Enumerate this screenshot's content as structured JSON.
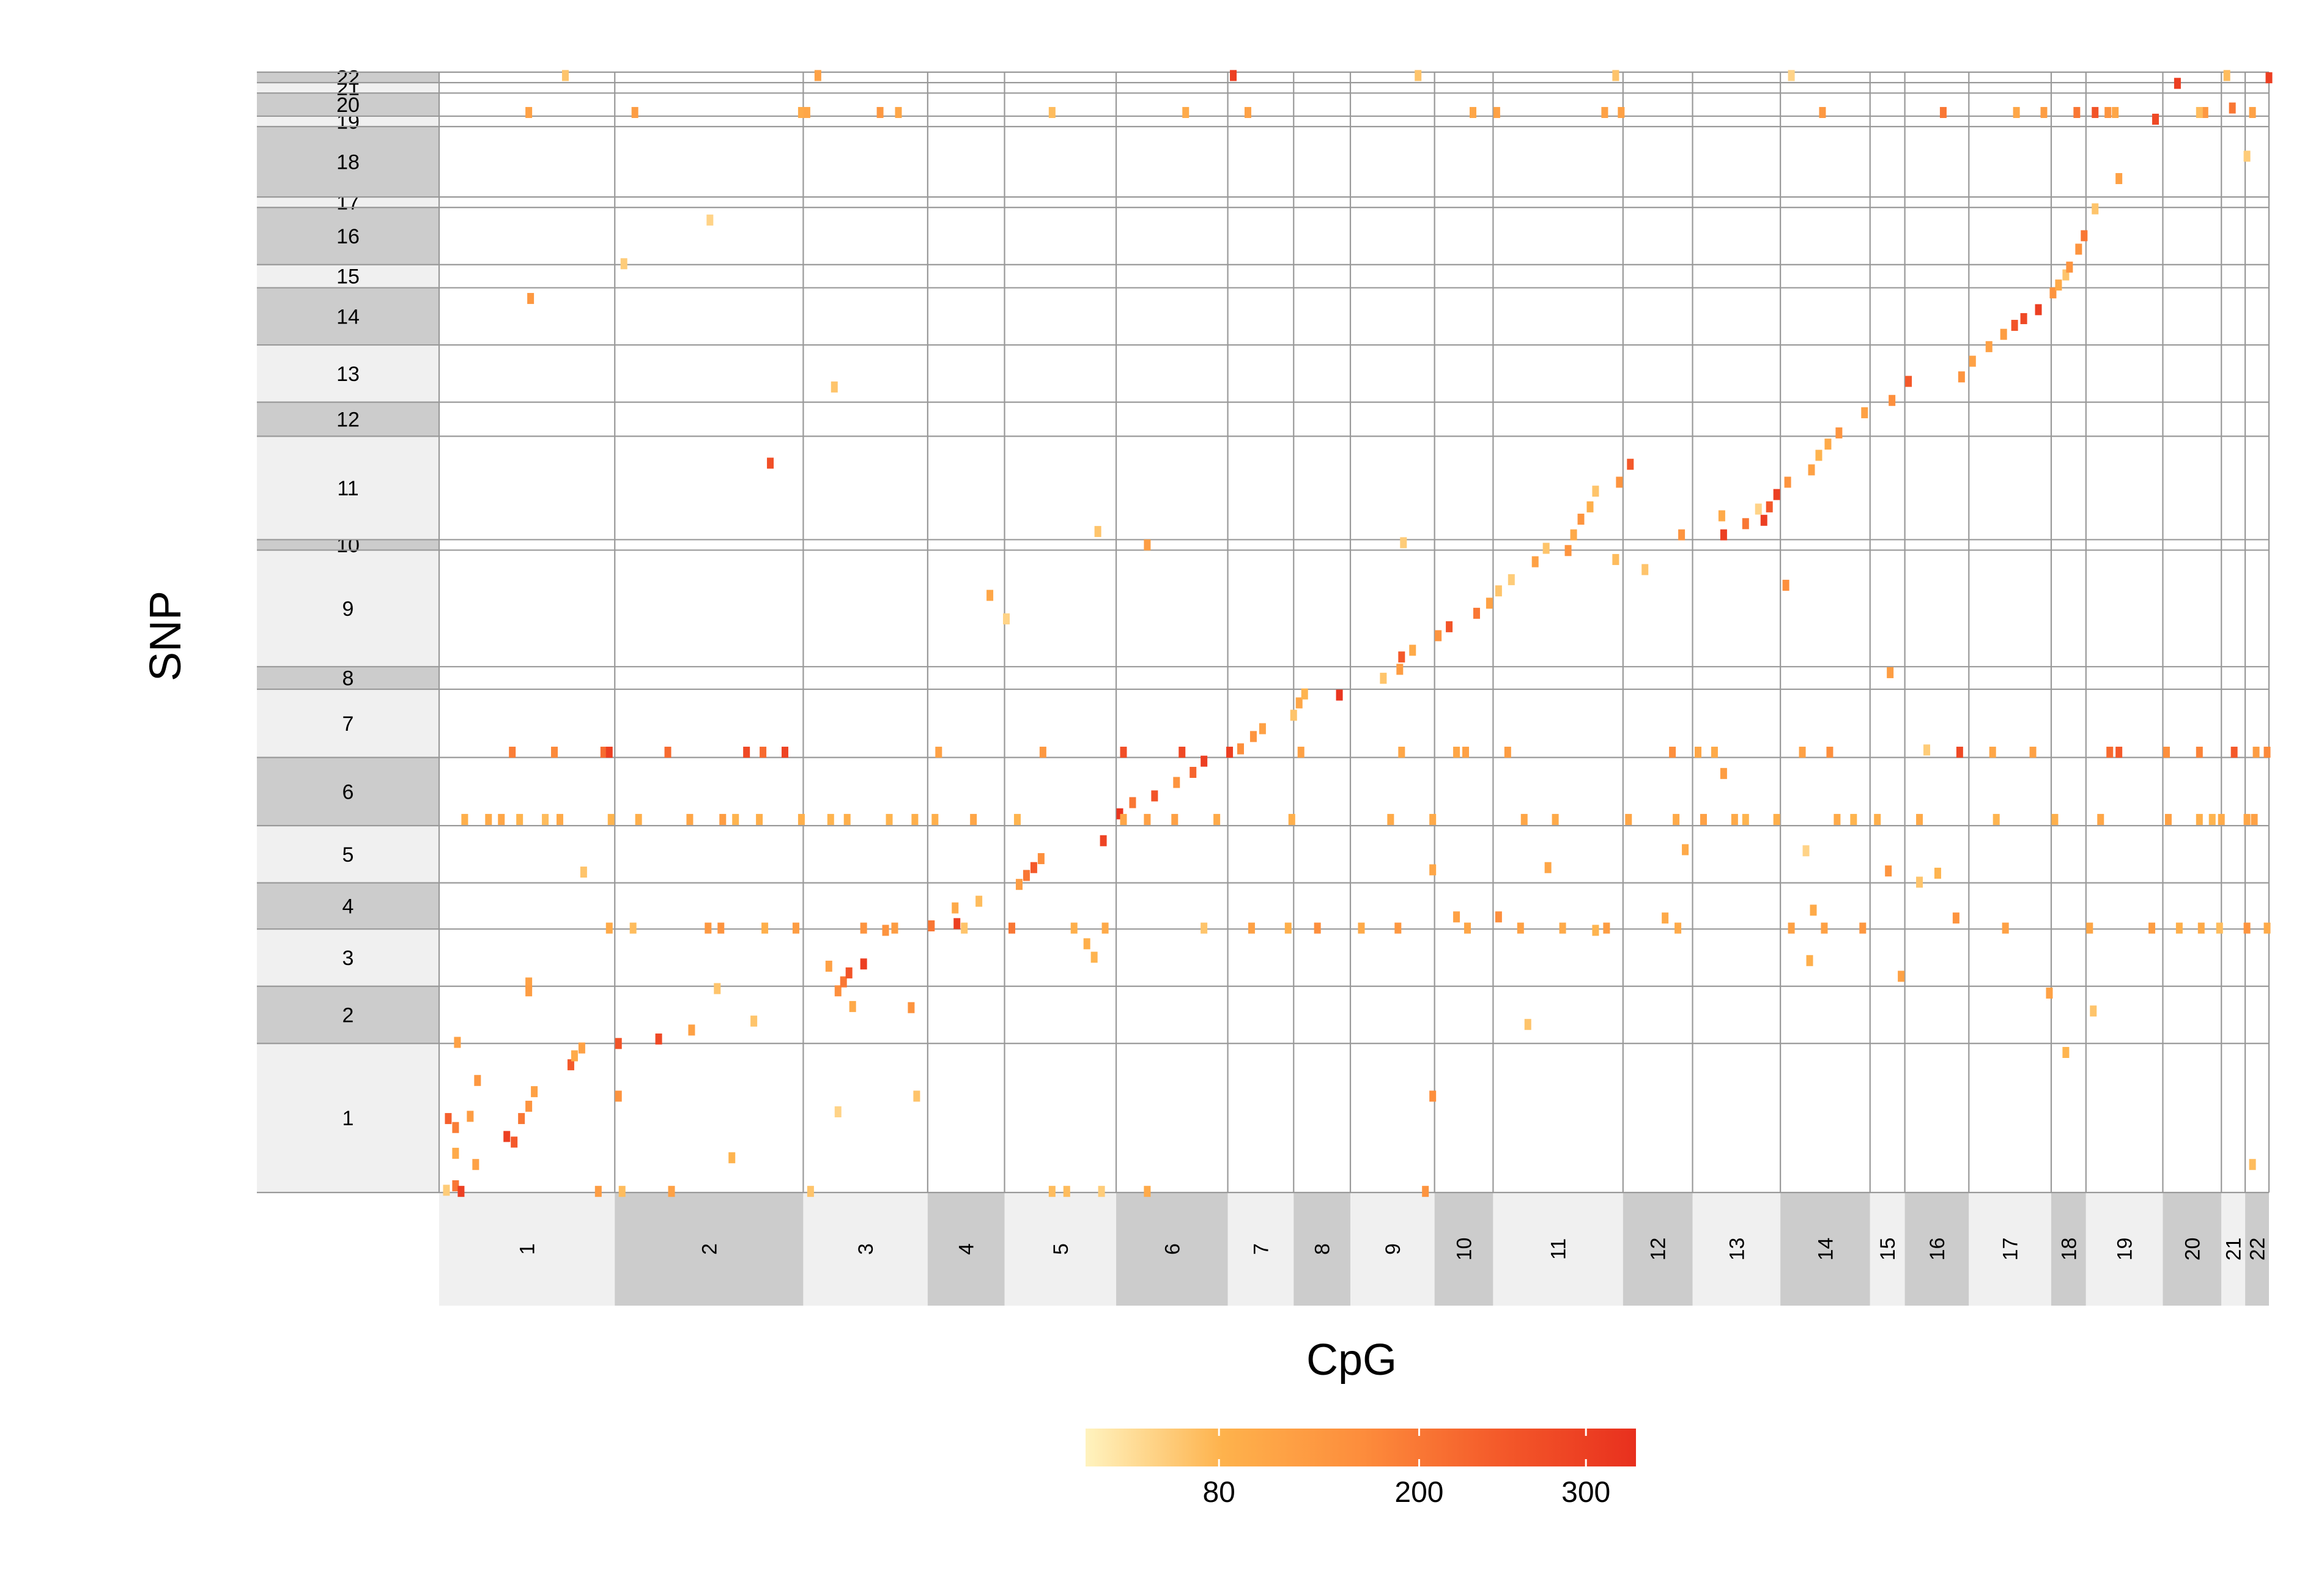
{
  "chart_data": {
    "type": "heatmap",
    "xlabel": "CpG",
    "ylabel": "SNP",
    "grid": true,
    "legend_position": "bottom",
    "chromosomes": [
      "1",
      "2",
      "3",
      "4",
      "5",
      "6",
      "7",
      "8",
      "9",
      "10",
      "11",
      "12",
      "13",
      "14",
      "15",
      "16",
      "17",
      "18",
      "19",
      "20",
      "21",
      "22"
    ],
    "cpg_chrom_fraction": [
      0.096,
      0.103,
      0.068,
      0.042,
      0.061,
      0.061,
      0.036,
      0.031,
      0.046,
      0.032,
      0.071,
      0.038,
      0.048,
      0.049,
      0.019,
      0.035,
      0.045,
      0.019,
      0.042,
      0.032,
      0.013,
      0.013
    ],
    "snp_chrom_fraction": [
      0.1355,
      0.052,
      0.052,
      0.042,
      0.052,
      0.062,
      0.062,
      0.0205,
      0.106,
      0.0095,
      0.094,
      0.031,
      0.052,
      0.052,
      0.021,
      0.052,
      0.0095,
      0.064,
      0.0095,
      0.021,
      0.0095,
      0.0095
    ],
    "colorbar": {
      "ticks": [
        80,
        200,
        300
      ],
      "min": 0,
      "max": 330,
      "colors": [
        "#fff3bf",
        "#feb24c",
        "#fd8d3c",
        "#f45a2a",
        "#e8301e"
      ]
    },
    "points": [
      [
        0.004,
        0.002,
        50
      ],
      [
        0.009,
        0.006,
        200
      ],
      [
        0.02,
        0.025,
        120
      ],
      [
        0.037,
        0.05,
        300
      ],
      [
        0.041,
        0.045,
        250
      ],
      [
        0.045,
        0.066,
        200
      ],
      [
        0.049,
        0.077,
        150
      ],
      [
        0.052,
        0.09,
        120
      ],
      [
        0.017,
        0.068,
        130
      ],
      [
        0.072,
        0.114,
        250
      ],
      [
        0.074,
        0.122,
        100
      ],
      [
        0.078,
        0.129,
        120
      ],
      [
        0.098,
        0.133,
        260
      ],
      [
        0.12,
        0.137,
        280
      ],
      [
        0.138,
        0.145,
        120
      ],
      [
        0.172,
        0.153,
        60
      ],
      [
        0.218,
        0.18,
        160
      ],
      [
        0.221,
        0.188,
        200
      ],
      [
        0.224,
        0.196,
        260
      ],
      [
        0.232,
        0.204,
        300
      ],
      [
        0.244,
        0.234,
        150
      ],
      [
        0.269,
        0.238,
        200
      ],
      [
        0.283,
        0.24,
        300
      ],
      [
        0.282,
        0.254,
        100
      ],
      [
        0.295,
        0.26,
        70
      ],
      [
        0.317,
        0.275,
        130
      ],
      [
        0.321,
        0.283,
        200
      ],
      [
        0.325,
        0.29,
        250
      ],
      [
        0.329,
        0.298,
        160
      ],
      [
        0.363,
        0.314,
        290
      ],
      [
        0.372,
        0.338,
        320
      ],
      [
        0.379,
        0.348,
        200
      ],
      [
        0.391,
        0.354,
        260
      ],
      [
        0.403,
        0.366,
        150
      ],
      [
        0.412,
        0.375,
        230
      ],
      [
        0.418,
        0.385,
        300
      ],
      [
        0.438,
        0.396,
        160
      ],
      [
        0.445,
        0.407,
        150
      ],
      [
        0.45,
        0.414,
        120
      ],
      [
        0.467,
        0.426,
        60
      ],
      [
        0.47,
        0.437,
        110
      ],
      [
        0.473,
        0.445,
        80
      ],
      [
        0.492,
        0.444,
        320
      ],
      [
        0.516,
        0.459,
        60
      ],
      [
        0.525,
        0.467,
        130
      ],
      [
        0.526,
        0.478,
        250
      ],
      [
        0.532,
        0.484,
        100
      ],
      [
        0.546,
        0.497,
        150
      ],
      [
        0.552,
        0.505,
        260
      ],
      [
        0.567,
        0.517,
        200
      ],
      [
        0.574,
        0.526,
        120
      ],
      [
        0.579,
        0.537,
        60
      ],
      [
        0.586,
        0.547,
        50
      ],
      [
        0.599,
        0.563,
        120
      ],
      [
        0.605,
        0.575,
        60
      ],
      [
        0.617,
        0.573,
        150
      ],
      [
        0.62,
        0.587,
        100
      ],
      [
        0.624,
        0.601,
        150
      ],
      [
        0.629,
        0.612,
        90
      ],
      [
        0.632,
        0.626,
        60
      ],
      [
        0.645,
        0.634,
        150
      ],
      [
        0.651,
        0.65,
        250
      ],
      [
        0.679,
        0.587,
        150
      ],
      [
        0.702,
        0.587,
        300
      ],
      [
        0.714,
        0.597,
        200
      ],
      [
        0.724,
        0.6,
        300
      ],
      [
        0.727,
        0.612,
        250
      ],
      [
        0.731,
        0.623,
        300
      ],
      [
        0.737,
        0.634,
        150
      ],
      [
        0.75,
        0.645,
        120
      ],
      [
        0.754,
        0.658,
        80
      ],
      [
        0.759,
        0.668,
        100
      ],
      [
        0.765,
        0.678,
        150
      ],
      [
        0.779,
        0.696,
        120
      ],
      [
        0.794,
        0.707,
        160
      ],
      [
        0.803,
        0.724,
        250
      ],
      [
        0.832,
        0.728,
        150
      ],
      [
        0.838,
        0.742,
        120
      ],
      [
        0.847,
        0.755,
        120
      ],
      [
        0.855,
        0.766,
        130
      ],
      [
        0.861,
        0.774,
        260
      ],
      [
        0.866,
        0.78,
        280
      ],
      [
        0.874,
        0.788,
        300
      ],
      [
        0.882,
        0.803,
        150
      ],
      [
        0.885,
        0.81,
        100
      ],
      [
        0.889,
        0.819,
        60
      ],
      [
        0.891,
        0.826,
        150
      ],
      [
        0.896,
        0.842,
        150
      ],
      [
        0.899,
        0.854,
        200
      ],
      [
        0.905,
        0.878,
        60
      ],
      [
        0.918,
        0.905,
        120
      ],
      [
        0.938,
        0.958,
        280
      ],
      [
        0.95,
        0.99,
        300
      ],
      [
        0.98,
        0.968,
        200
      ],
      [
        1.0,
        0.995,
        300
      ],
      [
        0.012,
        0.001,
        300
      ],
      [
        0.005,
        0.066,
        240
      ],
      [
        0.009,
        0.058,
        190
      ],
      [
        0.021,
        0.1,
        140
      ],
      [
        0.01,
        0.134,
        120
      ],
      [
        0.098,
        0.086,
        150
      ],
      [
        0.087,
        0.001,
        130
      ],
      [
        0.1,
        0.001,
        70
      ],
      [
        0.127,
        0.001,
        120
      ],
      [
        0.203,
        0.001,
        60
      ],
      [
        0.335,
        0.001,
        70
      ],
      [
        0.343,
        0.001,
        70
      ],
      [
        0.362,
        0.001,
        50
      ],
      [
        0.387,
        0.001,
        100
      ],
      [
        0.539,
        0.001,
        150
      ],
      [
        0.543,
        0.086,
        160
      ],
      [
        0.218,
        0.072,
        40
      ],
      [
        0.05,
        0.798,
        140
      ],
      [
        0.049,
        0.187,
        120
      ],
      [
        0.049,
        0.18,
        130
      ],
      [
        0.093,
        0.236,
        100
      ],
      [
        0.106,
        0.236,
        70
      ],
      [
        0.147,
        0.236,
        140
      ],
      [
        0.154,
        0.236,
        150
      ],
      [
        0.178,
        0.236,
        90
      ],
      [
        0.195,
        0.236,
        130
      ],
      [
        0.232,
        0.236,
        150
      ],
      [
        0.249,
        0.236,
        130
      ],
      [
        0.287,
        0.236,
        60
      ],
      [
        0.313,
        0.236,
        200
      ],
      [
        0.347,
        0.236,
        90
      ],
      [
        0.364,
        0.236,
        100
      ],
      [
        0.418,
        0.236,
        60
      ],
      [
        0.444,
        0.236,
        120
      ],
      [
        0.464,
        0.236,
        90
      ],
      [
        0.48,
        0.236,
        160
      ],
      [
        0.504,
        0.236,
        100
      ],
      [
        0.524,
        0.236,
        140
      ],
      [
        0.562,
        0.236,
        110
      ],
      [
        0.591,
        0.236,
        120
      ],
      [
        0.614,
        0.236,
        100
      ],
      [
        0.638,
        0.236,
        130
      ],
      [
        0.677,
        0.236,
        100
      ],
      [
        0.739,
        0.236,
        120
      ],
      [
        0.757,
        0.236,
        120
      ],
      [
        0.778,
        0.236,
        140
      ],
      [
        0.856,
        0.236,
        120
      ],
      [
        0.902,
        0.236,
        110
      ],
      [
        0.936,
        0.236,
        130
      ],
      [
        0.951,
        0.236,
        90
      ],
      [
        0.963,
        0.236,
        100
      ],
      [
        0.973,
        0.236,
        70
      ],
      [
        0.988,
        0.236,
        150
      ],
      [
        0.999,
        0.236,
        100
      ],
      [
        0.014,
        0.333,
        90
      ],
      [
        0.027,
        0.333,
        100
      ],
      [
        0.034,
        0.333,
        110
      ],
      [
        0.044,
        0.333,
        80
      ],
      [
        0.058,
        0.333,
        70
      ],
      [
        0.066,
        0.333,
        100
      ],
      [
        0.094,
        0.333,
        80
      ],
      [
        0.109,
        0.333,
        90
      ],
      [
        0.137,
        0.333,
        110
      ],
      [
        0.155,
        0.333,
        130
      ],
      [
        0.162,
        0.333,
        80
      ],
      [
        0.175,
        0.333,
        90
      ],
      [
        0.198,
        0.333,
        90
      ],
      [
        0.214,
        0.333,
        80
      ],
      [
        0.223,
        0.333,
        90
      ],
      [
        0.246,
        0.333,
        80
      ],
      [
        0.26,
        0.333,
        90
      ],
      [
        0.271,
        0.333,
        90
      ],
      [
        0.292,
        0.333,
        110
      ],
      [
        0.316,
        0.333,
        80
      ],
      [
        0.374,
        0.333,
        110
      ],
      [
        0.387,
        0.333,
        120
      ],
      [
        0.402,
        0.333,
        120
      ],
      [
        0.425,
        0.333,
        100
      ],
      [
        0.466,
        0.333,
        90
      ],
      [
        0.52,
        0.333,
        100
      ],
      [
        0.543,
        0.333,
        100
      ],
      [
        0.593,
        0.333,
        110
      ],
      [
        0.61,
        0.333,
        100
      ],
      [
        0.65,
        0.333,
        110
      ],
      [
        0.676,
        0.333,
        100
      ],
      [
        0.691,
        0.333,
        120
      ],
      [
        0.708,
        0.333,
        100
      ],
      [
        0.714,
        0.333,
        80
      ],
      [
        0.731,
        0.333,
        90
      ],
      [
        0.764,
        0.333,
        100
      ],
      [
        0.773,
        0.333,
        80
      ],
      [
        0.786,
        0.333,
        90
      ],
      [
        0.809,
        0.333,
        100
      ],
      [
        0.851,
        0.333,
        80
      ],
      [
        0.883,
        0.333,
        90
      ],
      [
        0.908,
        0.333,
        110
      ],
      [
        0.945,
        0.333,
        120
      ],
      [
        0.962,
        0.333,
        90
      ],
      [
        0.969,
        0.333,
        80
      ],
      [
        0.974,
        0.333,
        100
      ],
      [
        0.988,
        0.333,
        110
      ],
      [
        0.992,
        0.333,
        120
      ],
      [
        0.04,
        0.393,
        190
      ],
      [
        0.063,
        0.393,
        170
      ],
      [
        0.09,
        0.393,
        220
      ],
      [
        0.093,
        0.393,
        300
      ],
      [
        0.125,
        0.393,
        220
      ],
      [
        0.168,
        0.393,
        280
      ],
      [
        0.177,
        0.393,
        220
      ],
      [
        0.189,
        0.393,
        290
      ],
      [
        0.273,
        0.393,
        120
      ],
      [
        0.33,
        0.393,
        140
      ],
      [
        0.374,
        0.393,
        270
      ],
      [
        0.406,
        0.393,
        280
      ],
      [
        0.432,
        0.393,
        300
      ],
      [
        0.471,
        0.393,
        120
      ],
      [
        0.526,
        0.393,
        110
      ],
      [
        0.556,
        0.393,
        110
      ],
      [
        0.561,
        0.393,
        120
      ],
      [
        0.584,
        0.393,
        130
      ],
      [
        0.674,
        0.393,
        160
      ],
      [
        0.688,
        0.393,
        110
      ],
      [
        0.697,
        0.393,
        100
      ],
      [
        0.745,
        0.393,
        120
      ],
      [
        0.76,
        0.393,
        160
      ],
      [
        0.831,
        0.393,
        280
      ],
      [
        0.849,
        0.393,
        110
      ],
      [
        0.871,
        0.393,
        120
      ],
      [
        0.913,
        0.393,
        220
      ],
      [
        0.918,
        0.393,
        250
      ],
      [
        0.944,
        0.393,
        160
      ],
      [
        0.962,
        0.393,
        180
      ],
      [
        0.981,
        0.393,
        250
      ],
      [
        0.993,
        0.393,
        130
      ],
      [
        0.999,
        0.393,
        170
      ],
      [
        0.049,
        0.964,
        120
      ],
      [
        0.107,
        0.964,
        130
      ],
      [
        0.198,
        0.964,
        100
      ],
      [
        0.201,
        0.964,
        110
      ],
      [
        0.241,
        0.964,
        140
      ],
      [
        0.251,
        0.964,
        110
      ],
      [
        0.335,
        0.964,
        70
      ],
      [
        0.408,
        0.964,
        100
      ],
      [
        0.442,
        0.964,
        120
      ],
      [
        0.565,
        0.964,
        110
      ],
      [
        0.578,
        0.964,
        120
      ],
      [
        0.637,
        0.964,
        120
      ],
      [
        0.646,
        0.964,
        120
      ],
      [
        0.756,
        0.964,
        140
      ],
      [
        0.822,
        0.964,
        200
      ],
      [
        0.862,
        0.964,
        110
      ],
      [
        0.877,
        0.964,
        130
      ],
      [
        0.895,
        0.964,
        200
      ],
      [
        0.905,
        0.964,
        260
      ],
      [
        0.912,
        0.964,
        150
      ],
      [
        0.916,
        0.964,
        110
      ],
      [
        0.965,
        0.964,
        140
      ],
      [
        0.991,
        0.964,
        120
      ],
      [
        0.069,
        0.997,
        60
      ],
      [
        0.207,
        0.997,
        120
      ],
      [
        0.434,
        0.997,
        300
      ],
      [
        0.535,
        0.997,
        60
      ],
      [
        0.643,
        0.997,
        60
      ],
      [
        0.739,
        0.997,
        40
      ],
      [
        0.977,
        0.997,
        70
      ],
      [
        0.988,
        0.925,
        50
      ],
      [
        0.962,
        0.964,
        70
      ],
      [
        0.148,
        0.868,
        40
      ],
      [
        0.101,
        0.829,
        50
      ],
      [
        0.216,
        0.719,
        60
      ],
      [
        0.181,
        0.651,
        270
      ],
      [
        0.301,
        0.533,
        110
      ],
      [
        0.31,
        0.512,
        40
      ],
      [
        0.36,
        0.59,
        60
      ],
      [
        0.387,
        0.578,
        130
      ],
      [
        0.527,
        0.58,
        50
      ],
      [
        0.643,
        0.565,
        70
      ],
      [
        0.659,
        0.556,
        60
      ],
      [
        0.721,
        0.61,
        40
      ],
      [
        0.701,
        0.604,
        100
      ],
      [
        0.736,
        0.542,
        160
      ],
      [
        0.793,
        0.464,
        130
      ],
      [
        0.813,
        0.395,
        50
      ],
      [
        0.809,
        0.277,
        60
      ],
      [
        0.792,
        0.287,
        150
      ],
      [
        0.819,
        0.285,
        80
      ],
      [
        0.829,
        0.245,
        150
      ],
      [
        0.904,
        0.162,
        60
      ],
      [
        0.799,
        0.193,
        120
      ],
      [
        0.747,
        0.305,
        40
      ],
      [
        0.606,
        0.29,
        110
      ],
      [
        0.543,
        0.288,
        110
      ],
      [
        0.556,
        0.246,
        120
      ],
      [
        0.579,
        0.246,
        160
      ],
      [
        0.632,
        0.234,
        80
      ],
      [
        0.595,
        0.15,
        60
      ],
      [
        0.67,
        0.245,
        100
      ],
      [
        0.681,
        0.306,
        100
      ],
      [
        0.702,
        0.374,
        130
      ],
      [
        0.751,
        0.252,
        100
      ],
      [
        0.749,
        0.207,
        90
      ],
      [
        0.88,
        0.178,
        120
      ],
      [
        0.889,
        0.125,
        80
      ],
      [
        0.991,
        0.025,
        70
      ],
      [
        0.152,
        0.182,
        60
      ],
      [
        0.226,
        0.166,
        100
      ],
      [
        0.258,
        0.165,
        150
      ],
      [
        0.261,
        0.086,
        60
      ],
      [
        0.213,
        0.202,
        120
      ],
      [
        0.358,
        0.21,
        80
      ],
      [
        0.354,
        0.222,
        90
      ],
      [
        0.16,
        0.031,
        80
      ],
      [
        0.079,
        0.286,
        60
      ],
      [
        0.009,
        0.035,
        100
      ]
    ]
  }
}
